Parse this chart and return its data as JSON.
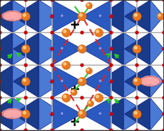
{
  "fig_width": 2.36,
  "fig_height": 1.89,
  "dpi": 100,
  "bg_color": "white",
  "blue_dark": "#1a3a8a",
  "blue_mid": "#2a5abf",
  "blue_light": "#4a7ad4",
  "blue_pale": "#6699dd",
  "orange_color": "#e87820",
  "orange_dark": "#b05010",
  "orange_hi": "#ffdd99",
  "red_dot": "#cc0000",
  "green_col": "#22cc22",
  "pink_col": "#ffaaaa",
  "pink_edge": "#cc6666",
  "gray_line": "#b0b0b0",
  "border_col": "#444444",
  "white_area": "#ffffff",
  "blue_dot_col": "#3355bb"
}
